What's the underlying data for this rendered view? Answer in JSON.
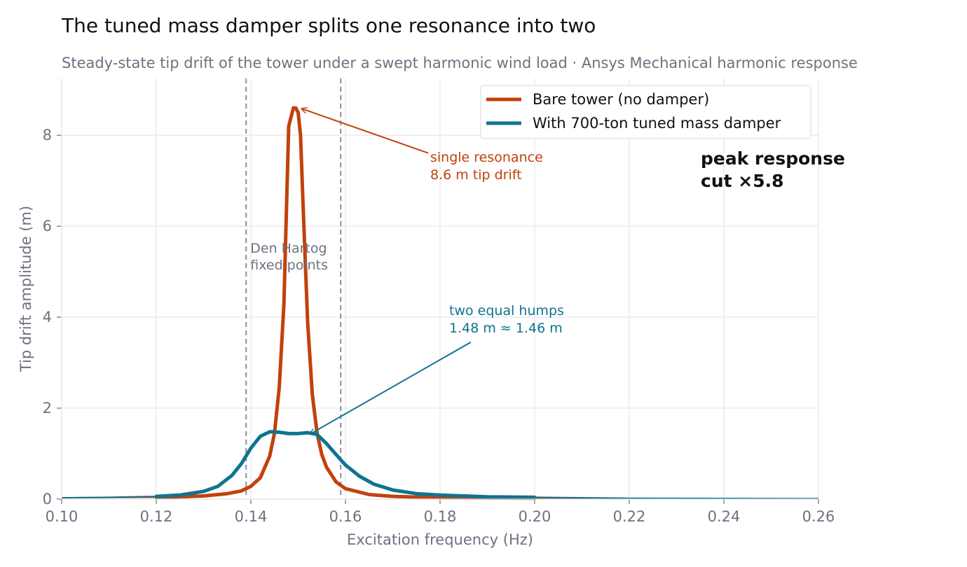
{
  "chart_data": {
    "type": "line",
    "title": "The tuned mass damper splits one resonance into two",
    "subtitle": "Steady-state tip drift of the tower under a swept harmonic wind load  ·  Ansys Mechanical harmonic response",
    "xlabel": "Excitation frequency  (Hz)",
    "ylabel": "Tip drift amplitude  (m)",
    "xlim": [
      0.1,
      0.26
    ],
    "ylim": [
      0,
      9.25
    ],
    "x_ticks": [
      "0.10",
      "0.12",
      "0.14",
      "0.16",
      "0.18",
      "0.20",
      "0.22",
      "0.24",
      "0.26"
    ],
    "y_ticks": [
      "0",
      "2",
      "4",
      "6",
      "8"
    ],
    "grid": true,
    "legend_position": "top-right",
    "series": [
      {
        "name": "Bare tower (no damper)",
        "color": "#c2410c",
        "x": [
          0.1,
          0.12,
          0.125,
          0.13,
          0.135,
          0.138,
          0.14,
          0.142,
          0.144,
          0.145,
          0.146,
          0.147,
          0.148,
          0.149,
          0.1495,
          0.15,
          0.1505,
          0.151,
          0.152,
          0.153,
          0.154,
          0.155,
          0.156,
          0.158,
          0.16,
          0.165,
          0.17,
          0.18,
          0.2,
          0.22,
          0.26
        ],
        "y": [
          0.03,
          0.04,
          0.05,
          0.07,
          0.12,
          0.18,
          0.28,
          0.47,
          0.95,
          1.45,
          2.45,
          4.3,
          8.2,
          8.6,
          8.6,
          8.5,
          8.0,
          6.6,
          3.9,
          2.3,
          1.45,
          0.98,
          0.7,
          0.38,
          0.23,
          0.1,
          0.06,
          0.03,
          0.02,
          0.01,
          0.01
        ]
      },
      {
        "name": "With 700-ton tuned mass damper",
        "color": "#0e7490",
        "x": [
          0.1,
          0.11,
          0.12,
          0.125,
          0.13,
          0.133,
          0.136,
          0.138,
          0.14,
          0.142,
          0.144,
          0.146,
          0.148,
          0.15,
          0.152,
          0.154,
          0.156,
          0.158,
          0.16,
          0.163,
          0.166,
          0.17,
          0.175,
          0.18,
          0.19,
          0.2,
          0.22,
          0.26
        ],
        "y": [
          0.03,
          0.04,
          0.06,
          0.09,
          0.17,
          0.28,
          0.52,
          0.78,
          1.12,
          1.38,
          1.48,
          1.47,
          1.44,
          1.44,
          1.46,
          1.42,
          1.22,
          0.98,
          0.75,
          0.5,
          0.33,
          0.2,
          0.12,
          0.09,
          0.05,
          0.04,
          0.02,
          0.01
        ]
      }
    ],
    "reference_lines": [
      {
        "axis": "x",
        "value": 0.139,
        "style": "dashed"
      },
      {
        "axis": "x",
        "value": 0.159,
        "style": "dashed"
      }
    ],
    "annotations": {
      "den_hartog": [
        "Den Hartog",
        "fixed points"
      ],
      "bare": {
        "lines": [
          "single resonance",
          "8.6 m tip drift"
        ],
        "arrow_to": [
          0.15,
          8.6
        ],
        "arrow_from": [
          0.1775,
          7.7
        ]
      },
      "tmd": {
        "lines": [
          "two equal humps",
          "1.48 m ≈ 1.46 m"
        ],
        "arrow_to": [
          0.1525,
          1.46
        ],
        "arrow_from": [
          0.1865,
          3.45
        ]
      },
      "summary": [
        "peak response",
        "cut  ×5.8"
      ]
    }
  }
}
